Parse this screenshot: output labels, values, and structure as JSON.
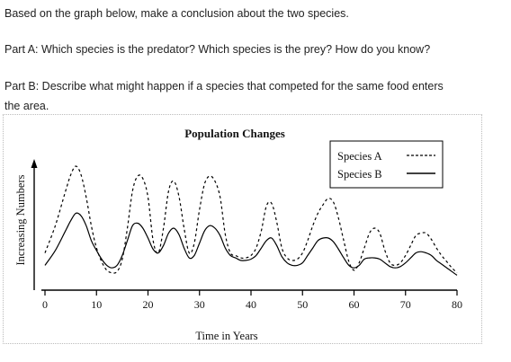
{
  "questions": {
    "intro": "Based on the graph below, make a conclusion about the two species.",
    "part_a": "Part A: Which species is the predator? Which species is the prey? How do you know?",
    "part_b_line1": "Part B: Describe what might happen if a species that competed for the same food enters",
    "part_b_line2": "the area."
  },
  "chart_data": {
    "type": "line",
    "title": "Population Changes",
    "xlabel": "Time in Years",
    "ylabel": "Increasing Numbers",
    "xlim": [
      0,
      80
    ],
    "ylim": [
      0,
      10
    ],
    "xticks": [
      "0",
      "10",
      "20",
      "30",
      "40",
      "50",
      "60",
      "70",
      "80"
    ],
    "legend_position": "top-right",
    "series": [
      {
        "name": "Species A",
        "style": "dashed",
        "color": "#000000",
        "x": [
          0,
          2,
          4,
          5,
          6,
          7,
          8,
          9,
          10,
          11,
          12,
          13,
          14,
          15,
          16,
          17,
          18,
          19,
          20,
          21,
          22,
          23,
          24,
          25,
          26,
          27,
          28,
          29,
          30,
          31,
          32,
          33,
          34,
          35,
          36,
          37,
          38,
          39,
          40,
          41,
          42,
          43,
          44,
          45,
          46,
          47,
          48,
          49,
          50,
          51,
          52,
          53,
          54,
          55,
          56,
          57,
          58,
          59,
          60,
          61,
          62,
          63,
          64,
          65,
          66,
          67,
          68,
          69,
          70,
          71,
          72,
          73,
          74,
          75,
          76,
          77,
          78,
          79,
          80
        ],
        "y": [
          3.0,
          5.2,
          8.0,
          9.3,
          10.0,
          9.3,
          7.5,
          5.2,
          3.4,
          2.3,
          1.6,
          1.4,
          1.5,
          2.5,
          5.0,
          8.0,
          9.2,
          9.0,
          7.5,
          4.0,
          3.0,
          5.0,
          8.0,
          8.8,
          7.6,
          5.0,
          3.0,
          3.8,
          6.5,
          8.6,
          9.2,
          8.8,
          7.5,
          4.5,
          3.0,
          2.8,
          2.6,
          2.6,
          2.8,
          3.4,
          4.8,
          6.8,
          7.0,
          5.5,
          3.4,
          2.6,
          2.4,
          2.5,
          3.0,
          4.0,
          5.2,
          6.2,
          6.9,
          7.4,
          7.1,
          5.8,
          4.0,
          2.3,
          1.6,
          2.2,
          3.4,
          4.6,
          5.0,
          4.6,
          3.2,
          2.2,
          2.0,
          2.2,
          2.8,
          3.6,
          4.4,
          4.6,
          4.6,
          4.1,
          3.4,
          2.8,
          2.3,
          1.8,
          1.4
        ]
      },
      {
        "name": "Species B",
        "style": "solid",
        "color": "#000000",
        "x": [
          0,
          2,
          4,
          5,
          6,
          7,
          8,
          9,
          10,
          11,
          12,
          13,
          14,
          15,
          16,
          17,
          18,
          19,
          20,
          21,
          22,
          23,
          24,
          25,
          26,
          27,
          28,
          29,
          30,
          31,
          32,
          33,
          34,
          35,
          36,
          37,
          38,
          39,
          40,
          41,
          42,
          43,
          44,
          45,
          46,
          47,
          48,
          49,
          50,
          51,
          52,
          53,
          54,
          55,
          56,
          57,
          58,
          59,
          60,
          61,
          62,
          63,
          64,
          65,
          66,
          67,
          68,
          69,
          70,
          71,
          72,
          73,
          74,
          75,
          76,
          77,
          78,
          79,
          80
        ],
        "y": [
          2.0,
          3.2,
          4.8,
          5.6,
          6.2,
          6.0,
          5.2,
          4.0,
          3.2,
          2.5,
          2.0,
          1.8,
          2.0,
          2.8,
          4.0,
          5.2,
          5.4,
          5.0,
          4.2,
          3.3,
          3.0,
          3.6,
          4.6,
          5.0,
          4.5,
          3.4,
          2.6,
          2.8,
          3.8,
          4.8,
          5.2,
          5.0,
          4.4,
          3.4,
          2.8,
          2.6,
          2.4,
          2.4,
          2.5,
          2.8,
          3.4,
          4.0,
          4.2,
          3.6,
          2.7,
          2.2,
          2.0,
          2.0,
          2.2,
          2.8,
          3.4,
          4.0,
          4.2,
          4.2,
          3.9,
          3.3,
          2.6,
          2.0,
          1.8,
          2.0,
          2.5,
          2.6,
          2.6,
          2.5,
          2.2,
          1.9,
          1.8,
          1.9,
          2.2,
          2.6,
          3.0,
          3.1,
          3.0,
          2.8,
          2.4,
          2.1,
          1.8,
          1.5,
          1.2
        ]
      }
    ]
  }
}
